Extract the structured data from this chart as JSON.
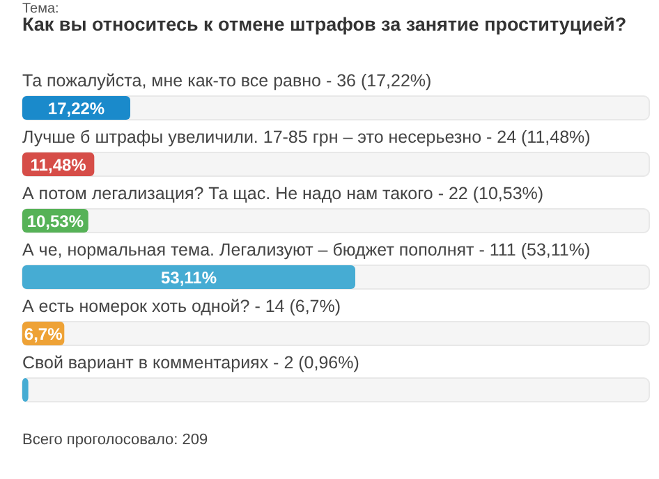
{
  "chart_data": {
    "type": "bar",
    "orientation": "horizontal",
    "title": "Как вы относитесь к отмене штрафов за занятие проституцией?",
    "annotations": [
      "Тема:",
      "Всего проголосовало: 209"
    ],
    "categories": [
      "Та пожалуйста, мне как-то все равно - 36 (17,22%)",
      "Лучше б штрафы увеличили. 17-85 грн – это несерьезно - 24 (11,48%)",
      "А потом легализация? Та щас. Не надо нам такого - 22 (10,53%)",
      "А че, нормальная тема. Легализуют – бюджет пополнят - 111 (53,11%)",
      "А есть номерок хоть одной? - 14 (6,7%)",
      "Свой вариант в комментариях - 2 (0,96%)"
    ],
    "values": [
      17.22,
      11.48,
      10.53,
      53.11,
      6.7,
      0.96
    ],
    "colors": [
      "#1a8acb",
      "#d64d48",
      "#56b257",
      "#46acd3",
      "#eea236",
      "#46acd3"
    ],
    "value_labels": [
      "17,22%",
      "11,48%",
      "10,53%",
      "53,11%",
      "6,7%",
      null
    ],
    "xlim": [
      0,
      100
    ]
  }
}
